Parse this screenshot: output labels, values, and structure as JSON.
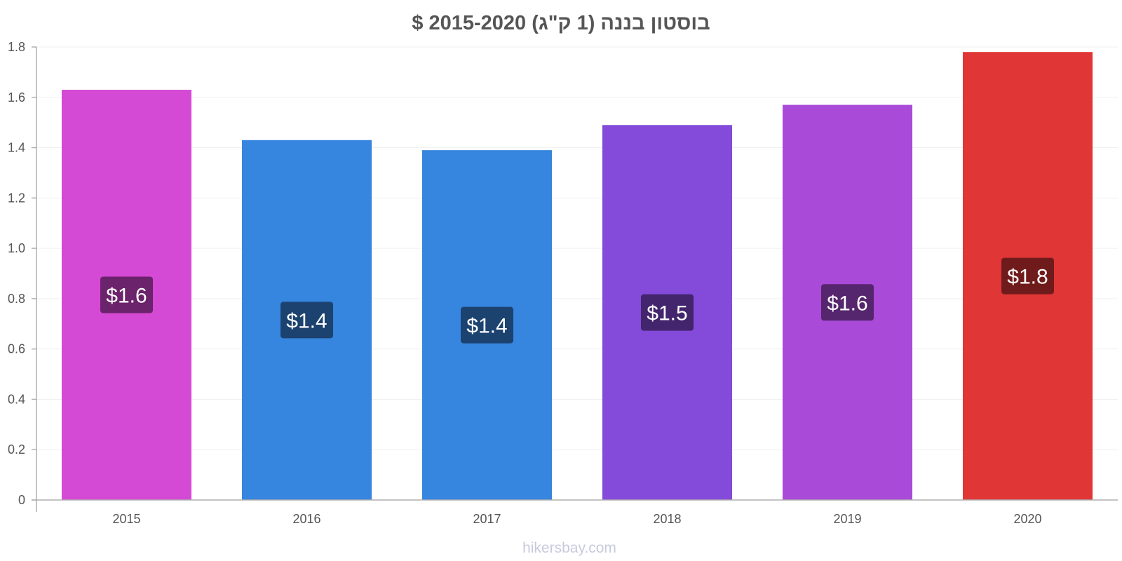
{
  "chart_data": {
    "type": "bar",
    "title": "בוסטון בננה (1 ק\"ג) 2015-2020 $",
    "categories": [
      "2015",
      "2016",
      "2017",
      "2018",
      "2019",
      "2020"
    ],
    "values": [
      1.63,
      1.43,
      1.39,
      1.49,
      1.57,
      1.78
    ],
    "data_labels": [
      "$1.6",
      "$1.4",
      "$1.4",
      "$1.5",
      "$1.6",
      "$1.8"
    ],
    "bar_colors": [
      "#d44ad4",
      "#3685de",
      "#3685de",
      "#844ad9",
      "#a94ad9",
      "#e03636"
    ],
    "label_bg_colors": [
      "#6b236b",
      "#1c426f",
      "#1c426f",
      "#42256d",
      "#55256d",
      "#701b1b"
    ],
    "y_ticks": [
      "0",
      "0.2",
      "0.4",
      "0.6",
      "0.8",
      "1.0",
      "1.2",
      "1.4",
      "1.6",
      "1.8"
    ],
    "ylim": [
      0,
      1.8
    ],
    "xlabel": "",
    "ylabel": "",
    "grid": true,
    "legend": "none"
  },
  "watermark": "hikersbay.com"
}
